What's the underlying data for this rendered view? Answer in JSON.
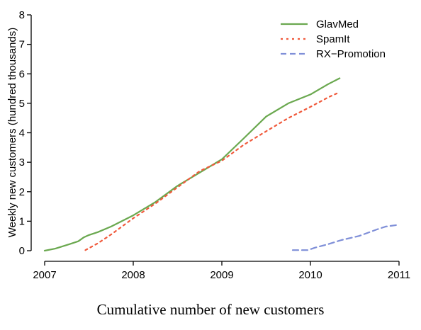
{
  "chart_data": {
    "type": "line",
    "title": "",
    "xlabel": "",
    "ylabel": "Weekly new customers (hundred thousands)",
    "xlim": [
      2007,
      2011
    ],
    "ylim": [
      0,
      8
    ],
    "xticks": [
      2007,
      2008,
      2009,
      2010,
      2011
    ],
    "yticks": [
      0,
      1,
      2,
      3,
      4,
      5,
      6,
      7,
      8
    ],
    "x_tick_labels": [
      "2007",
      "2008",
      "2009",
      "2010",
      "2011"
    ],
    "y_tick_labels": [
      "0",
      "1",
      "2",
      "3",
      "4",
      "5",
      "6",
      "7",
      "8"
    ],
    "grid": false,
    "legend_position": "top-right",
    "series": [
      {
        "name": "GlavMed",
        "color": "#6aa84f",
        "dash": "solid",
        "x": [
          2007.0,
          2007.12,
          2007.28,
          2007.38,
          2007.44,
          2007.5,
          2007.6,
          2007.75,
          2008.0,
          2008.25,
          2008.5,
          2008.75,
          2009.0,
          2009.25,
          2009.5,
          2009.75,
          2010.0,
          2010.2,
          2010.33
        ],
        "y": [
          0.0,
          0.07,
          0.22,
          0.32,
          0.45,
          0.53,
          0.63,
          0.82,
          1.2,
          1.65,
          2.2,
          2.65,
          3.1,
          3.82,
          4.55,
          5.0,
          5.3,
          5.65,
          5.85
        ]
      },
      {
        "name": "SpamIt",
        "color": "#f05a3c",
        "dash": "dotted",
        "x": [
          2007.46,
          2007.6,
          2007.75,
          2008.0,
          2008.25,
          2008.5,
          2008.75,
          2009.0,
          2009.25,
          2009.5,
          2009.75,
          2010.0,
          2010.2,
          2010.33
        ],
        "y": [
          0.02,
          0.25,
          0.55,
          1.1,
          1.6,
          2.15,
          2.7,
          3.05,
          3.6,
          4.05,
          4.5,
          4.88,
          5.2,
          5.38
        ]
      },
      {
        "name": "RX−Promotion",
        "color": "#7f8fd8",
        "dash": "dashed",
        "x": [
          2009.8,
          2009.97,
          2010.05,
          2010.2,
          2010.35,
          2010.55,
          2010.75,
          2010.85,
          2011.0
        ],
        "y": [
          0.02,
          0.02,
          0.1,
          0.22,
          0.36,
          0.5,
          0.72,
          0.82,
          0.88
        ]
      }
    ]
  },
  "caption": "Cumulative number of new customers"
}
